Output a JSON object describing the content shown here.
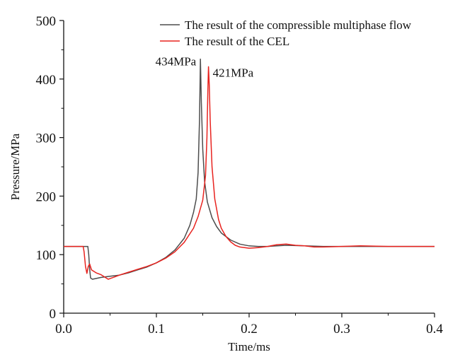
{
  "chart_data": {
    "type": "line",
    "xlabel": "Time/ms",
    "ylabel": "Pressure/MPa",
    "xlim": [
      0.0,
      0.4
    ],
    "ylim": [
      0,
      500
    ],
    "x_ticks": [
      0.0,
      0.1,
      0.2,
      0.3,
      0.4
    ],
    "x_tick_labels": [
      "0.0",
      "0.1",
      "0.2",
      "0.3",
      "0.4"
    ],
    "y_ticks": [
      0,
      100,
      200,
      300,
      400,
      500
    ],
    "y_tick_labels": [
      "0",
      "100",
      "200",
      "300",
      "400",
      "500"
    ],
    "grid": false,
    "legend_position": "top-right",
    "series": [
      {
        "name": "The result of the compressible multiphase flow",
        "color": "#4d4d4d",
        "points": [
          [
            0.0,
            114
          ],
          [
            0.025,
            114
          ],
          [
            0.026,
            114
          ],
          [
            0.027,
            100
          ],
          [
            0.028,
            75
          ],
          [
            0.029,
            60
          ],
          [
            0.031,
            58
          ],
          [
            0.04,
            61
          ],
          [
            0.05,
            63
          ],
          [
            0.06,
            65
          ],
          [
            0.07,
            69
          ],
          [
            0.08,
            74
          ],
          [
            0.09,
            79
          ],
          [
            0.1,
            86
          ],
          [
            0.11,
            95
          ],
          [
            0.12,
            108
          ],
          [
            0.13,
            128
          ],
          [
            0.136,
            150
          ],
          [
            0.14,
            172
          ],
          [
            0.143,
            195
          ],
          [
            0.145,
            240
          ],
          [
            0.1465,
            330
          ],
          [
            0.1475,
            434
          ],
          [
            0.1485,
            360
          ],
          [
            0.15,
            280
          ],
          [
            0.152,
            225
          ],
          [
            0.155,
            190
          ],
          [
            0.16,
            163
          ],
          [
            0.165,
            148
          ],
          [
            0.17,
            137
          ],
          [
            0.18,
            125
          ],
          [
            0.19,
            118
          ],
          [
            0.2,
            115
          ],
          [
            0.21,
            114
          ],
          [
            0.22,
            114
          ],
          [
            0.24,
            116
          ],
          [
            0.26,
            115
          ],
          [
            0.28,
            114
          ],
          [
            0.3,
            114
          ],
          [
            0.32,
            114
          ],
          [
            0.35,
            114
          ],
          [
            0.4,
            114
          ]
        ]
      },
      {
        "name": "The result of the CEL",
        "color": "#e8231f",
        "points": [
          [
            0.0,
            114
          ],
          [
            0.021,
            114
          ],
          [
            0.022,
            105
          ],
          [
            0.0235,
            80
          ],
          [
            0.025,
            68
          ],
          [
            0.0265,
            80
          ],
          [
            0.028,
            84
          ],
          [
            0.03,
            74
          ],
          [
            0.035,
            69
          ],
          [
            0.04,
            66
          ],
          [
            0.045,
            61
          ],
          [
            0.048,
            58
          ],
          [
            0.05,
            59
          ],
          [
            0.055,
            62
          ],
          [
            0.06,
            65
          ],
          [
            0.07,
            70
          ],
          [
            0.08,
            75
          ],
          [
            0.09,
            80
          ],
          [
            0.1,
            86
          ],
          [
            0.11,
            94
          ],
          [
            0.12,
            105
          ],
          [
            0.13,
            121
          ],
          [
            0.14,
            145
          ],
          [
            0.145,
            165
          ],
          [
            0.15,
            193
          ],
          [
            0.153,
            235
          ],
          [
            0.1545,
            300
          ],
          [
            0.1555,
            380
          ],
          [
            0.1562,
            421
          ],
          [
            0.157,
            390
          ],
          [
            0.158,
            330
          ],
          [
            0.16,
            250
          ],
          [
            0.163,
            195
          ],
          [
            0.167,
            160
          ],
          [
            0.17,
            145
          ],
          [
            0.175,
            131
          ],
          [
            0.18,
            122
          ],
          [
            0.185,
            116
          ],
          [
            0.19,
            113
          ],
          [
            0.2,
            111
          ],
          [
            0.21,
            112
          ],
          [
            0.22,
            114
          ],
          [
            0.23,
            117
          ],
          [
            0.24,
            118
          ],
          [
            0.25,
            116
          ],
          [
            0.26,
            115
          ],
          [
            0.27,
            113
          ],
          [
            0.28,
            113
          ],
          [
            0.3,
            114
          ],
          [
            0.32,
            115
          ],
          [
            0.35,
            114
          ],
          [
            0.4,
            114
          ]
        ]
      }
    ],
    "annotations": [
      {
        "text": "434MPa",
        "x": 0.1475,
        "y": 434,
        "series": 0
      },
      {
        "text": "421MPa",
        "x": 0.1562,
        "y": 421,
        "series": 1
      }
    ]
  }
}
